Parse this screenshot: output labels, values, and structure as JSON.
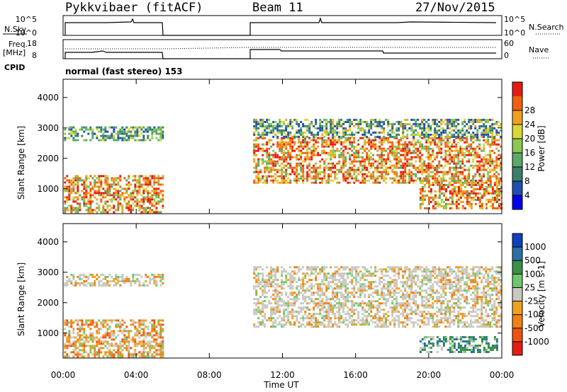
{
  "header": {
    "radar": "Pykkvibaer (fitACF)",
    "beam": "Beam 11",
    "date": "27/Nov/2015",
    "cpid_text": "normal (fast stereo) 153"
  },
  "side_labels": {
    "nsky": "N.Sky",
    "nsearch": "N.Search",
    "freq": "Freq.",
    "mhz": "[MHz]",
    "nave": "Nave",
    "cpid": "CPID",
    "nsky_ticks": [
      "10^5",
      "10^0"
    ],
    "nsearch_ticks": [
      "10^5",
      "10^0"
    ],
    "freq_ticks": [
      "18",
      "8"
    ],
    "nave_ticks": [
      "60",
      "0"
    ]
  },
  "chart_data": [
    {
      "type": "heatmap",
      "name": "power",
      "ylabel": "Slant Range [km]",
      "xlabel": "Time UT",
      "x_ticks": [
        "00:00",
        "04:00",
        "08:00",
        "12:00",
        "16:00",
        "20:00",
        "00:00"
      ],
      "y_ticks": [
        "1000",
        "2000",
        "3000",
        "4000"
      ],
      "yrange_km": [
        180,
        4600
      ],
      "xrange_hours": [
        0,
        24
      ],
      "colorbar": {
        "label": "Power [dB]",
        "ticks": [
          "4",
          "8",
          "12",
          "16",
          "20",
          "24",
          "28"
        ],
        "range": [
          0,
          32
        ],
        "colors": [
          "#0000ee",
          "#1e4fb0",
          "#3a7f6a",
          "#5ca867",
          "#8cc84e",
          "#d8d838",
          "#f0a020",
          "#f06010",
          "#e61c10"
        ]
      },
      "regions": [
        {
          "t0": 0.05,
          "t1": 5.5,
          "r0": 220,
          "r1": 1450,
          "level": "high"
        },
        {
          "t0": 0.05,
          "t1": 5.5,
          "r0": 2600,
          "r1": 3050,
          "level": "medium"
        },
        {
          "t0": 10.4,
          "t1": 24,
          "r0": 1200,
          "r1": 2700,
          "level": "high"
        },
        {
          "t0": 10.4,
          "t1": 24,
          "r0": 2700,
          "r1": 3300,
          "level": "low"
        },
        {
          "t0": 19.5,
          "t1": 24,
          "r0": 350,
          "r1": 1300,
          "level": "high"
        }
      ]
    },
    {
      "type": "heatmap",
      "name": "velocity",
      "ylabel": "Slant Range [km]",
      "xlabel": "Time UT",
      "x_ticks": [
        "00:00",
        "04:00",
        "08:00",
        "12:00",
        "16:00",
        "20:00",
        "00:00"
      ],
      "y_ticks": [
        "1000",
        "2000",
        "3000",
        "4000"
      ],
      "yrange_km": [
        180,
        4600
      ],
      "xrange_hours": [
        0,
        24
      ],
      "colorbar": {
        "label": "Velocity [m s-1]",
        "ticks": [
          "1000",
          "500",
          "100",
          "25",
          "-25",
          "-100",
          "-500",
          "-1000"
        ],
        "colors": [
          "#1040c0",
          "#2a70a0",
          "#3a8f4a",
          "#6cc86a",
          "#c8c8c0",
          "#f0a020",
          "#f08010",
          "#f05010",
          "#e61c10"
        ]
      },
      "regions": [
        {
          "t0": 0.05,
          "t1": 5.5,
          "r0": 220,
          "r1": 1450,
          "level": "negative"
        },
        {
          "t0": 0.05,
          "t1": 5.5,
          "r0": 2600,
          "r1": 2950,
          "level": "near-zero"
        },
        {
          "t0": 10.4,
          "t1": 24,
          "r0": 1200,
          "r1": 3200,
          "level": "near-zero"
        },
        {
          "t0": 19.5,
          "t1": 23.8,
          "r0": 350,
          "r1": 900,
          "level": "positive"
        }
      ]
    }
  ]
}
